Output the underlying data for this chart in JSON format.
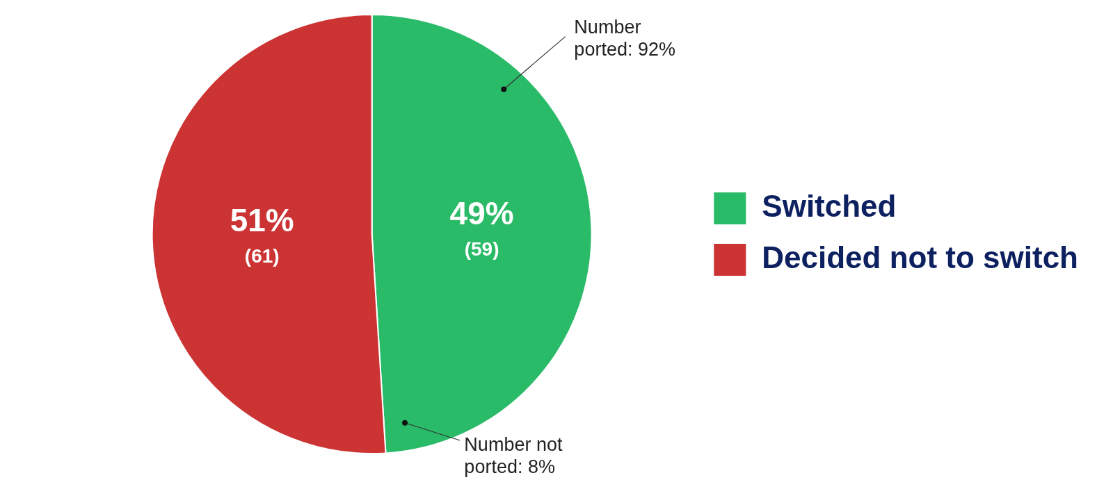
{
  "chart_data": {
    "type": "pie",
    "categories": [
      "Switched",
      "Decided not to switch"
    ],
    "values": [
      49,
      51
    ],
    "colors": [
      "#2abb69",
      "#cc3333"
    ],
    "value_labels": [
      "49%\n(59)",
      "51%\n(61)"
    ],
    "annotations": [
      "Number\nported: 92%",
      "Number not\nported: 8%"
    ],
    "legend": "right"
  }
}
